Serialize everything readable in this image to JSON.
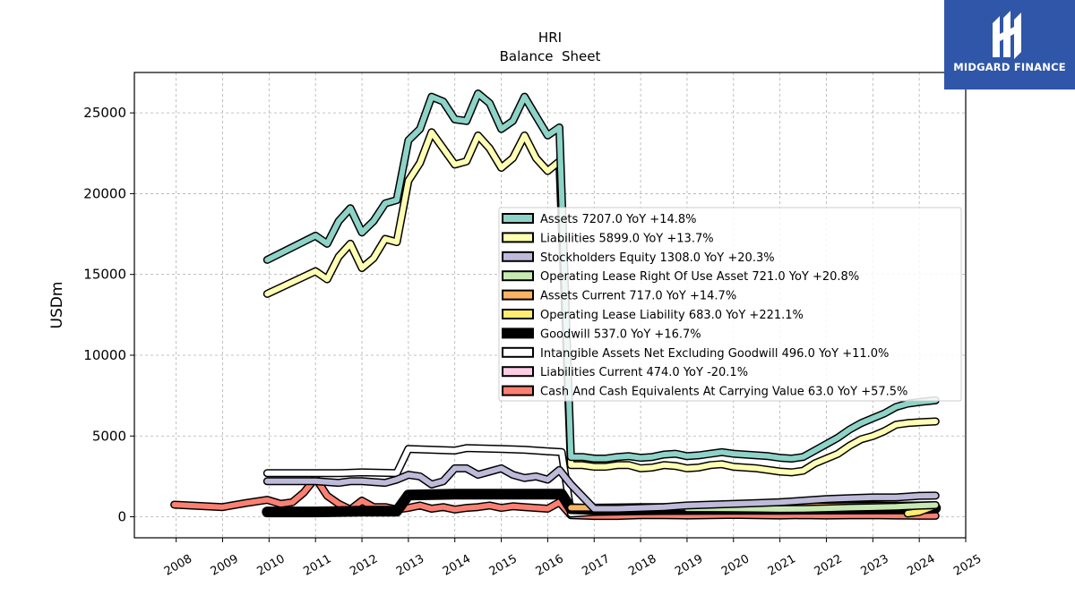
{
  "logo": {
    "text": "MIDGARD FINANCE",
    "bg_color": "#2f56a8",
    "icon": "midgard-logo-icon"
  },
  "chart_data": {
    "type": "line",
    "title": "HRI",
    "subtitle": "Balance  Sheet",
    "ylabel": "USDm",
    "xlabel": "",
    "xlim": [
      2007.1,
      2025.0
    ],
    "ylim": [
      -1300,
      27500
    ],
    "x_ticks": [
      "2008",
      "2009",
      "2010",
      "2011",
      "2012",
      "2013",
      "2014",
      "2015",
      "2016",
      "2017",
      "2018",
      "2019",
      "2020",
      "2021",
      "2022",
      "2023",
      "2024",
      "2025"
    ],
    "y_ticks": [
      "0",
      "5000",
      "10000",
      "15000",
      "20000",
      "25000"
    ],
    "grid": true,
    "legend_position": "center-right",
    "series": [
      {
        "name": "Assets",
        "legend": "Assets  7207.0 YoY +14.8%",
        "color": "#8dd3c7",
        "width": 6,
        "x": [
          2009.96,
          2011.0,
          2011.25,
          2011.5,
          2011.75,
          2012.0,
          2012.25,
          2012.5,
          2012.75,
          2013.0,
          2013.25,
          2013.5,
          2013.75,
          2014.0,
          2014.25,
          2014.5,
          2014.75,
          2015.0,
          2015.25,
          2015.5,
          2015.75,
          2016.0,
          2016.25,
          2016.5,
          2016.75,
          2017.0,
          2017.25,
          2017.5,
          2017.75,
          2018.0,
          2018.25,
          2018.5,
          2018.75,
          2019.0,
          2019.25,
          2019.5,
          2019.75,
          2020.0,
          2020.25,
          2020.5,
          2020.75,
          2021.0,
          2021.25,
          2021.5,
          2021.75,
          2022.0,
          2022.25,
          2022.5,
          2022.75,
          2023.0,
          2023.25,
          2023.5,
          2023.75,
          2024.0,
          2024.35
        ],
        "y": [
          15900,
          17400,
          16900,
          18300,
          19100,
          17600,
          18300,
          19400,
          19600,
          23300,
          24000,
          26000,
          25700,
          24600,
          24500,
          26200,
          25600,
          24000,
          24500,
          26000,
          24800,
          23600,
          24100,
          3700,
          3700,
          3600,
          3600,
          3700,
          3750,
          3650,
          3700,
          3850,
          3900,
          3750,
          3800,
          3900,
          4000,
          3900,
          3850,
          3800,
          3750,
          3650,
          3600,
          3700,
          4100,
          4500,
          4900,
          5400,
          5800,
          6100,
          6400,
          6800,
          7000,
          7100,
          7207
        ]
      },
      {
        "name": "Liabilities",
        "legend": "Liabilities  5899.0 YoY +13.7%",
        "color": "#ffffb3",
        "width": 6,
        "x": [
          2009.96,
          2011.0,
          2011.25,
          2011.5,
          2011.75,
          2012.0,
          2012.25,
          2012.5,
          2012.75,
          2013.0,
          2013.25,
          2013.5,
          2013.75,
          2014.0,
          2014.25,
          2014.5,
          2014.75,
          2015.0,
          2015.25,
          2015.5,
          2015.75,
          2016.0,
          2016.25,
          2016.5,
          2016.75,
          2017.0,
          2017.25,
          2017.5,
          2017.75,
          2018.0,
          2018.25,
          2018.5,
          2018.75,
          2019.0,
          2019.25,
          2019.5,
          2019.75,
          2020.0,
          2020.25,
          2020.5,
          2020.75,
          2021.0,
          2021.25,
          2021.5,
          2021.75,
          2022.0,
          2022.25,
          2022.5,
          2022.75,
          2023.0,
          2023.25,
          2023.5,
          2023.75,
          2024.0,
          2024.35
        ],
        "y": [
          13800,
          15200,
          14700,
          16100,
          16900,
          15400,
          16000,
          17200,
          17000,
          20800,
          21900,
          23800,
          22800,
          21800,
          22000,
          23600,
          22800,
          21600,
          22200,
          23600,
          22200,
          21400,
          22000,
          3200,
          3200,
          3100,
          3100,
          3200,
          3200,
          3000,
          3050,
          3200,
          3150,
          3000,
          3050,
          3200,
          3250,
          3100,
          3050,
          3000,
          2900,
          2800,
          2750,
          2850,
          3300,
          3600,
          3900,
          4400,
          4800,
          5000,
          5300,
          5700,
          5800,
          5850,
          5899
        ]
      },
      {
        "name": "Stockholders Equity",
        "legend": "Stockholders Equity  1308.0 YoY +20.3%",
        "color": "#bebada",
        "width": 6,
        "x": [
          2009.96,
          2011.0,
          2011.5,
          2011.75,
          2012.0,
          2012.5,
          2012.75,
          2013.0,
          2013.25,
          2013.5,
          2013.75,
          2014.0,
          2014.25,
          2014.5,
          2014.75,
          2015.0,
          2015.25,
          2015.5,
          2015.75,
          2016.0,
          2016.25,
          2016.5,
          2017.0,
          2017.5,
          2018.0,
          2018.5,
          2019.0,
          2019.5,
          2020.0,
          2020.5,
          2021.0,
          2021.5,
          2022.0,
          2022.5,
          2023.0,
          2023.5,
          2024.0,
          2024.35
        ],
        "y": [
          2200,
          2200,
          2100,
          2200,
          2200,
          2100,
          2300,
          2600,
          2500,
          2000,
          2200,
          3000,
          3000,
          2600,
          2800,
          3000,
          2600,
          2400,
          2500,
          2300,
          2900,
          2000,
          500,
          500,
          550,
          600,
          700,
          750,
          800,
          850,
          900,
          1000,
          1100,
          1150,
          1200,
          1200,
          1300,
          1308
        ]
      },
      {
        "name": "Operating Lease Right Of Use Asset",
        "legend": "Operating Lease Right Of Use Asset  721.0 YoY +20.8%",
        "color": "#c6e8b2",
        "width": 6,
        "x": [
          2019.0,
          2019.5,
          2020.0,
          2020.5,
          2021.0,
          2021.5,
          2022.0,
          2022.5,
          2023.0,
          2023.5,
          2024.0,
          2024.35
        ],
        "y": [
          520,
          520,
          510,
          500,
          480,
          490,
          520,
          560,
          590,
          620,
          690,
          721
        ]
      },
      {
        "name": "Assets Current",
        "legend": "Assets Current  717.0 YoY +14.7%",
        "color": "#fdb462",
        "width": 6,
        "x": [
          2016.5,
          2017.0,
          2017.5,
          2018.0,
          2018.5,
          2019.0,
          2019.5,
          2020.0,
          2020.5,
          2021.0,
          2021.5,
          2022.0,
          2022.5,
          2023.0,
          2023.5,
          2024.0,
          2024.35
        ],
        "y": [
          560,
          560,
          580,
          600,
          600,
          590,
          620,
          610,
          600,
          600,
          620,
          640,
          660,
          680,
          690,
          700,
          717
        ]
      },
      {
        "name": "Operating Lease Liability",
        "legend": "Operating Lease Liability  683.0 YoY +221.1%",
        "color": "#ffed6f",
        "width": 6,
        "x": [
          2023.75,
          2024.0,
          2024.35
        ],
        "y": [
          200,
          300,
          683
        ]
      },
      {
        "name": "Goodwill",
        "legend": "Goodwill  537.0 YoY +16.7%",
        "color": "#000000",
        "width": 9,
        "x": [
          2009.96,
          2011.0,
          2012.0,
          2012.75,
          2013.0,
          2014.0,
          2015.0,
          2016.0,
          2016.3,
          2016.5,
          2017.0,
          2018.0,
          2019.0,
          2020.0,
          2021.0,
          2022.0,
          2023.0,
          2024.0,
          2024.35
        ],
        "y": [
          300,
          300,
          350,
          350,
          1350,
          1400,
          1400,
          1400,
          1400,
          500,
          450,
          450,
          450,
          460,
          460,
          470,
          480,
          490,
          537
        ]
      },
      {
        "name": "Intangible Assets Net Excluding Goodwill",
        "legend": "Intangible Assets Net Excluding Goodwill  496.0 YoY +11.0%",
        "color": "#ffffff",
        "width": 6,
        "x": [
          2009.96,
          2011.0,
          2011.5,
          2012.0,
          2012.75,
          2013.0,
          2013.5,
          2014.0,
          2014.25,
          2015.0,
          2015.5,
          2016.0,
          2016.3,
          2016.5,
          2017.0,
          2018.0,
          2019.0,
          2020.0,
          2021.0,
          2022.0,
          2023.0,
          2024.0,
          2024.35
        ],
        "y": [
          2700,
          2700,
          2700,
          2750,
          2700,
          4200,
          4150,
          4100,
          4250,
          4200,
          4150,
          4050,
          4000,
          200,
          300,
          350,
          380,
          400,
          420,
          440,
          460,
          470,
          496
        ]
      },
      {
        "name": "Liabilities Current",
        "legend": "Liabilities Current  474.0 YoY -20.1%",
        "color": "#fccde5",
        "width": 6,
        "x": [
          2016.5,
          2017.0,
          2017.5,
          2018.0,
          2018.5,
          2019.0,
          2019.5,
          2020.0,
          2020.5,
          2021.0,
          2021.5,
          2022.0,
          2022.5,
          2023.0,
          2023.5,
          2024.0,
          2024.35
        ],
        "y": [
          400,
          380,
          420,
          500,
          550,
          420,
          560,
          500,
          480,
          450,
          520,
          650,
          700,
          720,
          650,
          600,
          474
        ]
      },
      {
        "name": "Cash And Cash Equivalents At Carrying Value",
        "legend": "Cash And Cash Equivalents At Carrying Value  63.0 YoY +57.5%",
        "color": "#fb8072",
        "width": 6,
        "x": [
          2007.96,
          2009.0,
          2009.5,
          2009.96,
          2010.25,
          2010.5,
          2010.75,
          2011.0,
          2011.25,
          2011.5,
          2011.75,
          2012.0,
          2012.25,
          2012.5,
          2012.75,
          2013.0,
          2013.25,
          2013.5,
          2013.75,
          2014.0,
          2014.25,
          2014.5,
          2014.75,
          2015.0,
          2015.25,
          2015.5,
          2015.75,
          2016.0,
          2016.25,
          2016.5,
          2017.0,
          2017.5,
          2018.0,
          2018.5,
          2019.0,
          2019.5,
          2020.0,
          2020.5,
          2021.0,
          2021.5,
          2022.0,
          2022.5,
          2023.0,
          2023.5,
          2024.0,
          2024.35
        ],
        "y": [
          750,
          600,
          850,
          1050,
          800,
          900,
          1500,
          2400,
          1300,
          800,
          450,
          1000,
          600,
          600,
          450,
          550,
          700,
          500,
          600,
          450,
          550,
          600,
          700,
          550,
          650,
          600,
          550,
          500,
          900,
          100,
          50,
          50,
          100,
          100,
          80,
          100,
          120,
          100,
          80,
          100,
          80,
          90,
          100,
          80,
          60,
          63
        ]
      }
    ]
  }
}
